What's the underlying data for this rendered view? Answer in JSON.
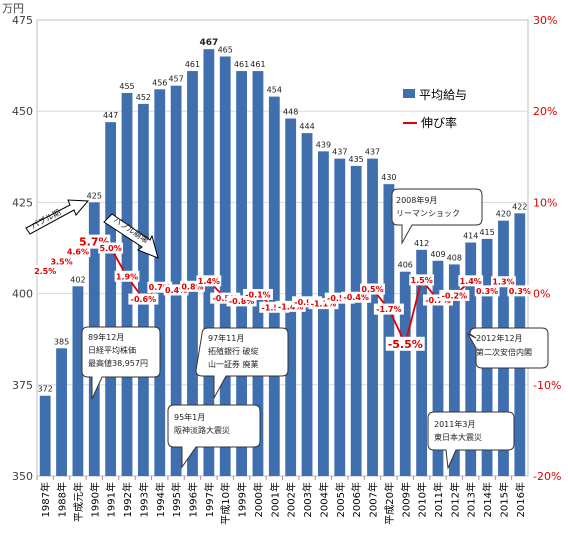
{
  "chart_data": {
    "type": "bar+line",
    "title": "",
    "y_unit": "万円",
    "ylim": [
      350,
      475
    ],
    "y_ticks": [
      350,
      375,
      400,
      425,
      450,
      475
    ],
    "y2lim": [
      -20,
      30
    ],
    "y2_ticks": [
      "30%",
      "20%",
      "10%",
      "0%",
      "-10%",
      "-20%"
    ],
    "y2_tick_values": [
      30,
      20,
      10,
      0,
      -10,
      -20
    ],
    "categories": [
      "1987年",
      "1988年",
      "平成元年",
      "1990年",
      "1991年",
      "1992年",
      "1993年",
      "1994年",
      "1995年",
      "1996年",
      "1997年",
      "平成10年",
      "1999年",
      "2000年",
      "2001年",
      "2002年",
      "2003年",
      "2004年",
      "2005年",
      "2006年",
      "2007年",
      "平成20年",
      "2009年",
      "2010年",
      "2011年",
      "2012年",
      "2013年",
      "2014年",
      "2015年",
      "2016年"
    ],
    "series": [
      {
        "name": "平均給与",
        "type": "bar",
        "color": "#3f6faf",
        "values": [
          372,
          385,
          402,
          425,
          447,
          455,
          452,
          456,
          457,
          461,
          467,
          465,
          461,
          461,
          454,
          448,
          444,
          439,
          437,
          435,
          437,
          430,
          406,
          412,
          409,
          408,
          414,
          415,
          420,
          422
        ],
        "labels": [
          "372",
          "385",
          "402",
          "425",
          "447",
          "455",
          "452",
          "456",
          "457",
          "461",
          "467",
          "465",
          "461",
          "461",
          "454",
          "448",
          "444",
          "439",
          "437",
          "435",
          "437",
          "430",
          "406",
          "412",
          "409",
          "408",
          "414",
          "415",
          "420",
          "422"
        ]
      },
      {
        "name": "伸び率",
        "type": "line",
        "color": "#e00000",
        "values": [
          2.5,
          3.5,
          4.6,
          5.7,
          5.0,
          1.9,
          -0.6,
          0.7,
          0.4,
          0.8,
          1.4,
          -0.5,
          -0.8,
          -0.1,
          -1.5,
          -1.4,
          -0.9,
          -1.1,
          -0.5,
          -0.4,
          0.5,
          -1.7,
          -5.5,
          1.5,
          -0.7,
          -0.2,
          1.4,
          0.3,
          1.3,
          0.3
        ],
        "labels": [
          "2.5%",
          "3.5%",
          "4.6%",
          "5.7%",
          "5.0%",
          "1.9%",
          "-0.6%",
          "0.7%",
          "0.4%",
          "0.8%",
          "1.4%",
          "-0.5%",
          "-0.8%",
          "-0.1%",
          "-1.5%",
          "-1.4%",
          "-0.9%",
          "-1.1%",
          "-0.5%",
          "-0.4%",
          "0.5%",
          "-1.7%",
          "-5.5%",
          "1.5%",
          "-0.7%",
          "-0.2%",
          "1.4%",
          "0.3%",
          "1.3%",
          "0.3%"
        ]
      }
    ],
    "legend": {
      "position": "top-right",
      "items": [
        "平均給与",
        "伸び率"
      ]
    },
    "annotations": {
      "bubble_peak": "バブル期",
      "bubble_burst": "バブル崩壊",
      "lehman": [
        "2008年9月",
        "リーマンショック"
      ],
      "nikkei": [
        "89年12月",
        "日経平均株価",
        "最高値38,957円"
      ],
      "takugin": [
        "97年11月",
        "拓殖銀行 破綻",
        "山一証券 廃業"
      ],
      "hanshin": [
        "95年1月",
        "阪神淡路大震災"
      ],
      "abe": [
        "2012年12月",
        "第二次安倍内閣"
      ],
      "tohoku": [
        "2011年3月",
        "東日本大震災"
      ]
    }
  }
}
